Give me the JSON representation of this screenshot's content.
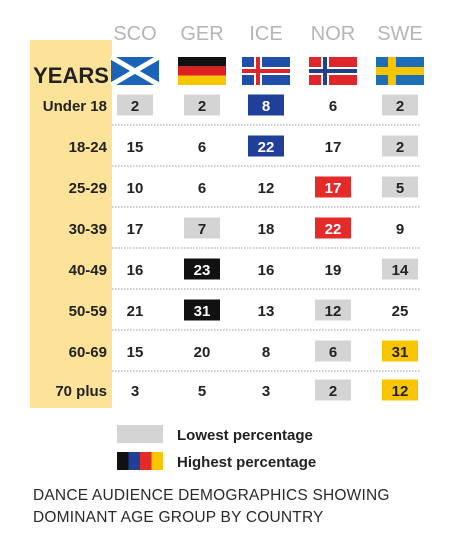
{
  "chart_data": {
    "type": "table",
    "row_header_title": "YEARS",
    "countries": [
      "SCO",
      "GER",
      "ICE",
      "NOR",
      "SWE"
    ],
    "flags": [
      "scotland",
      "germany",
      "iceland",
      "norway",
      "sweden"
    ],
    "rows": [
      {
        "label": "Under 18",
        "values": [
          2,
          2,
          8,
          6,
          2
        ],
        "marks": [
          "low",
          "low",
          "high",
          "",
          "low"
        ]
      },
      {
        "label": "18-24",
        "values": [
          15,
          6,
          22,
          17,
          2
        ],
        "marks": [
          "",
          "",
          "high",
          "",
          "low"
        ]
      },
      {
        "label": "25-29",
        "values": [
          10,
          6,
          12,
          17,
          5
        ],
        "marks": [
          "",
          "",
          "",
          "high",
          "low"
        ]
      },
      {
        "label": "30-39",
        "values": [
          17,
          7,
          18,
          22,
          9
        ],
        "marks": [
          "",
          "low",
          "",
          "high",
          ""
        ]
      },
      {
        "label": "40-49",
        "values": [
          16,
          23,
          16,
          19,
          14
        ],
        "marks": [
          "",
          "high",
          "",
          "",
          "low"
        ]
      },
      {
        "label": "50-59",
        "values": [
          21,
          31,
          13,
          12,
          25
        ],
        "marks": [
          "",
          "high",
          "",
          "low",
          ""
        ]
      },
      {
        "label": "60-69",
        "values": [
          15,
          20,
          8,
          6,
          31
        ],
        "marks": [
          "",
          "",
          "",
          "low",
          "high"
        ]
      },
      {
        "label": "70 plus",
        "values": [
          3,
          5,
          3,
          2,
          12
        ],
        "marks": [
          "",
          "",
          "",
          "low",
          "high"
        ]
      }
    ],
    "legend": {
      "lowest": "Lowest percentage",
      "highest": "Highest percentage"
    },
    "highlight_colors": {
      "low": "#d4d4d4",
      "SCO": "#111111",
      "GER": "#111111",
      "ICE": "#1f3f98",
      "NOR": "#e52a2a",
      "SWE": "#f8c600"
    }
  },
  "caption": {
    "line1": "DANCE AUDIENCE DEMOGRAPHICS SHOWING",
    "line2": "DOMINANT AGE GROUP BY COUNTRY"
  },
  "colors": {
    "year_band": "#fde29a",
    "header_text": "#b5b5b5",
    "divider": "#9a9a9a"
  }
}
